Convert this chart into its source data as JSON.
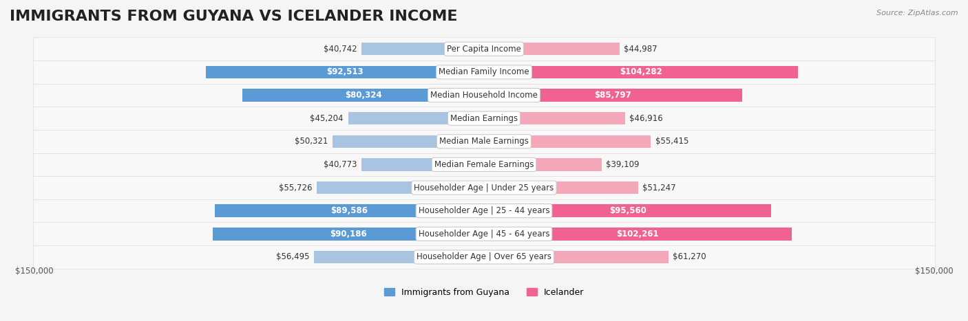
{
  "title": "IMMIGRANTS FROM GUYANA VS ICELANDER INCOME",
  "source": "Source: ZipAtlas.com",
  "categories": [
    "Per Capita Income",
    "Median Family Income",
    "Median Household Income",
    "Median Earnings",
    "Median Male Earnings",
    "Median Female Earnings",
    "Householder Age | Under 25 years",
    "Householder Age | 25 - 44 years",
    "Householder Age | 45 - 64 years",
    "Householder Age | Over 65 years"
  ],
  "guyana_values": [
    40742,
    92513,
    80324,
    45204,
    50321,
    40773,
    55726,
    89586,
    90186,
    56495
  ],
  "icelander_values": [
    44987,
    104282,
    85797,
    46916,
    55415,
    39109,
    51247,
    95560,
    102261,
    61270
  ],
  "guyana_labels": [
    "$40,742",
    "$92,513",
    "$80,324",
    "$45,204",
    "$50,321",
    "$40,773",
    "$55,726",
    "$89,586",
    "$90,186",
    "$56,495"
  ],
  "icelander_labels": [
    "$44,987",
    "$104,282",
    "$85,797",
    "$46,916",
    "$55,415",
    "$39,109",
    "$51,247",
    "$95,560",
    "$102,261",
    "$61,270"
  ],
  "guyana_color_light": "#a8c4e0",
  "guyana_color_dark": "#5b9bd5",
  "icelander_color_light": "#f4a7b9",
  "icelander_color_dark": "#f06292",
  "max_val": 150000,
  "background_color": "#f5f5f5",
  "row_bg_color": "#ffffff",
  "row_alt_bg_color": "#f0f0f0",
  "legend_guyana": "Immigrants from Guyana",
  "legend_icelander": "Icelander",
  "xlabel_left": "$150,000",
  "xlabel_right": "$150,000",
  "title_fontsize": 16,
  "label_fontsize": 8.5,
  "category_fontsize": 8.5
}
